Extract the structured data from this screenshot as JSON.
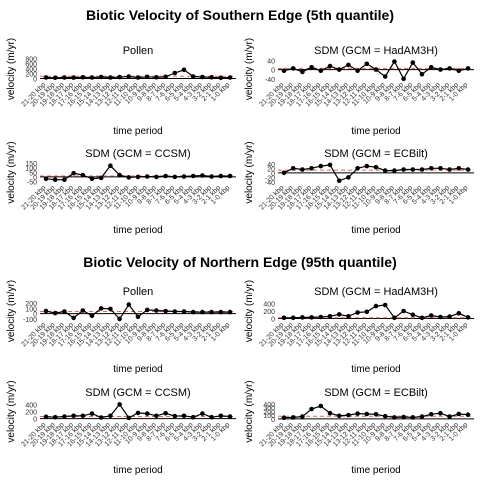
{
  "colors": {
    "line": "#000000",
    "zero_line": "#000000",
    "mean_line": "#e06666",
    "tick": "#333333"
  },
  "periods": [
    "21-20 kbp",
    "20-19 kbp",
    "19-18 kbp",
    "18-17 kbp",
    "17-16 kbp",
    "16-15 kbp",
    "15-14 kbp",
    "14-13 kbp",
    "13-12 kbp",
    "12-11 kbp",
    "11-10 kbp",
    "10-9 kbp",
    "9-8 kbp",
    "8-7 kbp",
    "7-6 kbp",
    "6-5 kbp",
    "5-4 kbp",
    "4-3 kbp",
    "3-2 kbp",
    "2-1 kbp",
    "1-0 kbp"
  ],
  "sections": [
    {
      "title": "Biotic Velocity of Southern Edge (5th quantile)"
    },
    {
      "title": "Biotic Velocity of Northern Edge (95th quantile)"
    }
  ],
  "chart_data": [
    {
      "type": "line",
      "section": 0,
      "title": "Pollen",
      "xlabel": "time period",
      "ylabel": "velocity (m/yr)",
      "yticks": [
        0,
        200,
        400,
        600,
        800
      ],
      "ylim": [
        -60,
        820
      ],
      "mean": 90,
      "values": [
        40,
        30,
        40,
        35,
        50,
        40,
        60,
        40,
        55,
        80,
        40,
        70,
        50,
        70,
        220,
        350,
        80,
        60,
        50,
        30,
        40
      ]
    },
    {
      "type": "line",
      "section": 0,
      "title": "SDM (GCM = HadAM3H)",
      "xlabel": "time period",
      "ylabel": "velocity (m/yr)",
      "yticks": [
        -40,
        0,
        40
      ],
      "ylim": [
        -45,
        50
      ],
      "mean": 5,
      "values": [
        -5,
        5,
        -10,
        10,
        -5,
        15,
        0,
        20,
        -5,
        25,
        0,
        -30,
        35,
        -40,
        30,
        -20,
        10,
        0,
        5,
        -5,
        5
      ]
    },
    {
      "type": "line",
      "section": 0,
      "title": "SDM (GCM = CCSM)",
      "xlabel": "time period",
      "ylabel": "velocity (m/yr)",
      "yticks": [
        -50,
        0,
        50,
        100,
        150
      ],
      "ylim": [
        -65,
        160
      ],
      "mean": 10,
      "values": [
        -20,
        -30,
        -30,
        40,
        20,
        -20,
        -10,
        120,
        20,
        -5,
        0,
        5,
        0,
        10,
        0,
        5,
        10,
        15,
        5,
        10,
        10
      ]
    },
    {
      "type": "line",
      "section": 0,
      "title": "SDM (GCM = ECBilt)",
      "xlabel": "time period",
      "ylabel": "velocity (m/yr)",
      "yticks": [
        -40,
        -20,
        0,
        20,
        40
      ],
      "ylim": [
        -45,
        48
      ],
      "mean": 12,
      "values": [
        0,
        20,
        15,
        20,
        30,
        35,
        -35,
        -20,
        20,
        30,
        25,
        10,
        10,
        15,
        15,
        15,
        20,
        20,
        15,
        20,
        15
      ]
    },
    {
      "type": "line",
      "section": 1,
      "title": "Pollen",
      "xlabel": "time period",
      "ylabel": "velocity (m/yr)",
      "yticks": [
        -100,
        0,
        100,
        200
      ],
      "ylim": [
        -120,
        220
      ],
      "mean": 40,
      "values": [
        50,
        10,
        40,
        -80,
        60,
        -40,
        100,
        90,
        -100,
        170,
        -60,
        70,
        60,
        50,
        40,
        40,
        30,
        30,
        30,
        30,
        30
      ]
    },
    {
      "type": "line",
      "section": 1,
      "title": "SDM (GCM = HadAM3H)",
      "xlabel": "time period",
      "ylabel": "velocity (m/yr)",
      "yticks": [
        0,
        200,
        400
      ],
      "ylim": [
        -40,
        440
      ],
      "mean": 20,
      "values": [
        20,
        20,
        30,
        30,
        40,
        60,
        110,
        60,
        160,
        180,
        330,
        360,
        20,
        200,
        100,
        20,
        80,
        40,
        50,
        140,
        30
      ]
    },
    {
      "type": "line",
      "section": 1,
      "title": "SDM (GCM = CCSM)",
      "xlabel": "time period",
      "ylabel": "velocity (m/yr)",
      "yticks": [
        0,
        200,
        400
      ],
      "ylim": [
        -40,
        440
      ],
      "mean": 60,
      "values": [
        50,
        40,
        60,
        80,
        80,
        140,
        30,
        80,
        400,
        20,
        160,
        140,
        80,
        150,
        70,
        80,
        40,
        140,
        40,
        80,
        60
      ]
    },
    {
      "type": "line",
      "section": 1,
      "title": "SDM (GCM = ECBilt)",
      "xlabel": "time period",
      "ylabel": "velocity (m/yr)",
      "yticks": [
        0,
        100,
        200,
        300,
        400
      ],
      "ylim": [
        -30,
        420
      ],
      "mean": 70,
      "values": [
        30,
        40,
        60,
        260,
        340,
        150,
        80,
        100,
        140,
        130,
        120,
        70,
        40,
        50,
        40,
        60,
        120,
        150,
        60,
        130,
        110
      ]
    }
  ]
}
